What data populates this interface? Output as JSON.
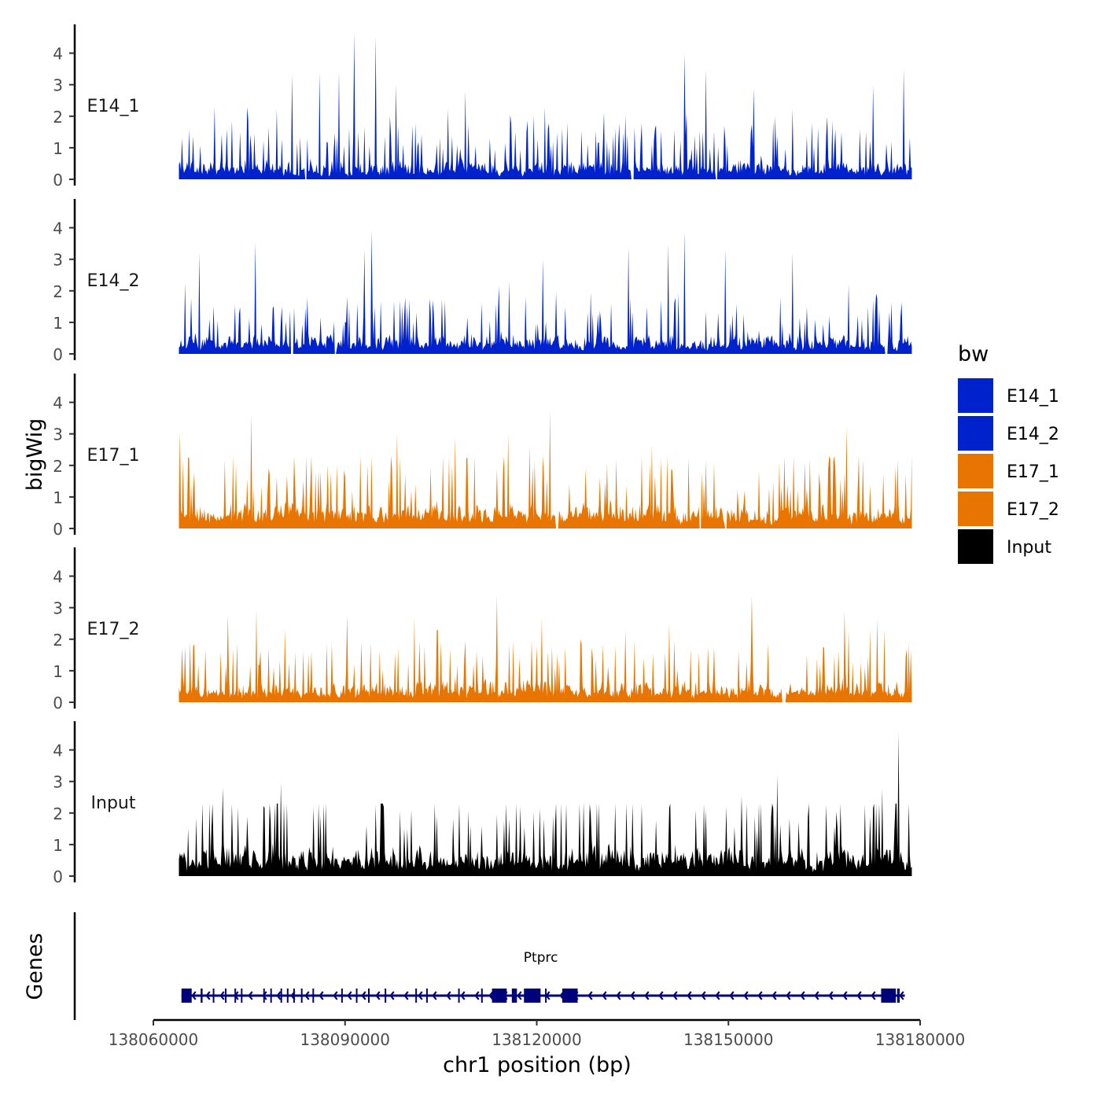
{
  "chart_data": {
    "type": "area",
    "ylabel": "bigWig",
    "genes_label": "Genes",
    "xlabel": "chr1 position (bp)",
    "region_start": 138064000,
    "region_end": 138178700,
    "xlim": [
      138060000,
      138180000
    ],
    "xticks": [
      138060000,
      138090000,
      138120000,
      138150000,
      138180000
    ],
    "xtick_labels": [
      "138060000",
      "138090000",
      "138120000",
      "138150000",
      "138180000"
    ],
    "ylim": [
      0,
      4.9
    ],
    "yticks": [
      0,
      1,
      2,
      3,
      4
    ],
    "ytick_labels": [
      "0",
      "1",
      "2",
      "3",
      "4"
    ],
    "legend": {
      "title": "bw",
      "position": "right"
    },
    "series": [
      {
        "name": "E14_1",
        "color": "#0022CC",
        "seed": 11,
        "base": 0.55,
        "peaks": [
          [
            138091500,
            4.65
          ],
          [
            138094800,
            4.55
          ],
          [
            138089100,
            3.4
          ],
          [
            138081700,
            3.35
          ],
          [
            138086000,
            3.4
          ],
          [
            138098000,
            3.0
          ],
          [
            138108800,
            2.8
          ],
          [
            138146500,
            3.5
          ],
          [
            138172600,
            3.0
          ],
          [
            138177500,
            3.5
          ],
          [
            138143200,
            4.0
          ],
          [
            138154000,
            2.9
          ]
        ],
        "gaps": [
          [
            138083700,
            138084100
          ],
          [
            138134700,
            138135200
          ],
          [
            138148000,
            138148300
          ]
        ]
      },
      {
        "name": "E14_2",
        "color": "#0022CC",
        "seed": 23,
        "base": 0.55,
        "peaks": [
          [
            138094200,
            3.9
          ],
          [
            138067200,
            3.2
          ],
          [
            138076000,
            3.55
          ],
          [
            138093000,
            3.3
          ],
          [
            138134300,
            3.4
          ],
          [
            138143200,
            3.9
          ],
          [
            138140600,
            3.5
          ],
          [
            138149500,
            3.3
          ],
          [
            138121000,
            3.0
          ],
          [
            138160000,
            3.2
          ]
        ],
        "gaps": [
          [
            138081500,
            138081900
          ],
          [
            138088300,
            138088600
          ],
          [
            138174500,
            138174900
          ]
        ]
      },
      {
        "name": "E17_1",
        "color": "#E87500",
        "seed": 37,
        "base": 0.7,
        "peaks": [
          [
            138075300,
            3.65
          ],
          [
            138122100,
            3.75
          ],
          [
            138064200,
            3.05
          ],
          [
            138098200,
            3.0
          ],
          [
            138107200,
            2.9
          ],
          [
            138115600,
            3.0
          ],
          [
            138138000,
            2.65
          ],
          [
            138168500,
            3.25
          ],
          [
            138118800,
            2.6
          ]
        ],
        "gaps": [
          [
            138123000,
            138123400
          ],
          [
            138145500,
            138145800
          ],
          [
            138149500,
            138149800
          ]
        ]
      },
      {
        "name": "E17_2",
        "color": "#E87500",
        "seed": 53,
        "base": 0.6,
        "peaks": [
          [
            138113700,
            3.4
          ],
          [
            138153700,
            3.4
          ],
          [
            138071700,
            2.8
          ],
          [
            138076200,
            2.95
          ],
          [
            138090400,
            2.8
          ],
          [
            138100800,
            2.65
          ],
          [
            138120800,
            2.65
          ],
          [
            138168100,
            2.9
          ],
          [
            138173300,
            2.65
          ],
          [
            138140700,
            2.5
          ]
        ],
        "gaps": [
          [
            138158300,
            138159000
          ]
        ]
      },
      {
        "name": "Input",
        "color": "#000000",
        "seed": 71,
        "base": 0.85,
        "peaks": [
          [
            138176600,
            4.55
          ],
          [
            138157700,
            3.2
          ],
          [
            138070800,
            2.8
          ],
          [
            138080000,
            2.95
          ],
          [
            138152000,
            2.55
          ],
          [
            138174000,
            2.75
          ],
          [
            138127300,
            2.35
          ],
          [
            138113700,
            1.95
          ]
        ],
        "gaps": []
      }
    ],
    "gene": {
      "name": "Ptprc",
      "color": "#00007A",
      "start": 138064400,
      "end": 138177600,
      "strand": "-",
      "exons": [
        [
          138064400,
          138066000
        ],
        [
          138067400,
          138067700
        ],
        [
          138069300,
          138069500
        ],
        [
          138071200,
          138071400
        ],
        [
          138072700,
          138072900
        ],
        [
          138073700,
          138073900
        ],
        [
          138077200,
          138077400
        ],
        [
          138078300,
          138078500
        ],
        [
          138079900,
          138080100
        ],
        [
          138080900,
          138081100
        ],
        [
          138081900,
          138082100
        ],
        [
          138083100,
          138083300
        ],
        [
          138084900,
          138085100
        ],
        [
          138089400,
          138089600
        ],
        [
          138091700,
          138091900
        ],
        [
          138093600,
          138093800
        ],
        [
          138096200,
          138096400
        ],
        [
          138101000,
          138101200
        ],
        [
          138102700,
          138102900
        ],
        [
          138107700,
          138107900
        ],
        [
          138111300,
          138111500
        ],
        [
          138113000,
          138115300
        ],
        [
          138116100,
          138116900
        ],
        [
          138118000,
          138120600
        ],
        [
          138121300,
          138121500
        ],
        [
          138124000,
          138126400
        ],
        [
          138173900,
          138176200
        ],
        [
          138176400,
          138176800
        ]
      ]
    }
  }
}
